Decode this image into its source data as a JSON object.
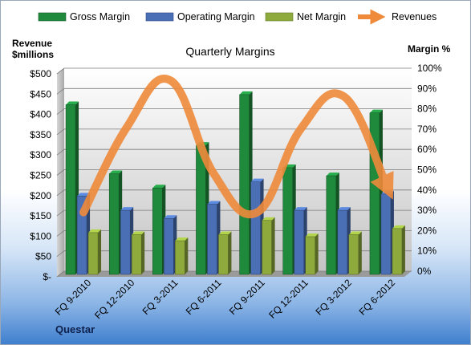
{
  "chart_data": {
    "type": "bar",
    "title": "Quarterly Margins",
    "company": "Questar",
    "ylabel_left": [
      "Revenue",
      "$millions"
    ],
    "ylabel_right": "Margin %",
    "categories": [
      "FQ 9-2010",
      "FQ 12-2010",
      "FQ 3-2011",
      "FQ 6-2011",
      "FQ 9-2011",
      "FQ 12-2011",
      "FQ 3-2012",
      "FQ 6-2012"
    ],
    "left_axis": {
      "range": [
        0,
        500
      ],
      "ticks": [
        0,
        50,
        100,
        150,
        200,
        250,
        300,
        350,
        400,
        450,
        500
      ],
      "tick_labels": [
        "$-",
        "$50",
        "$100",
        "$150",
        "$200",
        "$250",
        "$300",
        "$350",
        "$400",
        "$450",
        "$500"
      ]
    },
    "right_axis": {
      "range": [
        0,
        100
      ],
      "ticks": [
        0,
        10,
        20,
        30,
        40,
        50,
        60,
        70,
        80,
        90,
        100
      ],
      "tick_labels": [
        "0%",
        "10%",
        "20%",
        "30%",
        "40%",
        "50%",
        "60%",
        "70%",
        "80%",
        "90%",
        "100%"
      ]
    },
    "grid": true,
    "legend_position": "top",
    "series": [
      {
        "name": "Gross Margin",
        "type": "bar",
        "axis": "right",
        "color": "#1f8a3c",
        "values": [
          82,
          48,
          41,
          62,
          87,
          51,
          47,
          78
        ]
      },
      {
        "name": "Operating Margin",
        "type": "bar",
        "axis": "right",
        "color": "#4a6fb5",
        "values": [
          37,
          30,
          26,
          33,
          44,
          30,
          30,
          38
        ]
      },
      {
        "name": "Net Margin",
        "type": "bar",
        "axis": "right",
        "color": "#8faa3c",
        "values": [
          19,
          18,
          15,
          18,
          25,
          17,
          18,
          21
        ]
      },
      {
        "name": "Revenues",
        "type": "line",
        "axis": "left",
        "color": "#ef8a3a",
        "values": [
          145,
          355,
          470,
          240,
          145,
          350,
          430,
          205
        ]
      }
    ]
  }
}
